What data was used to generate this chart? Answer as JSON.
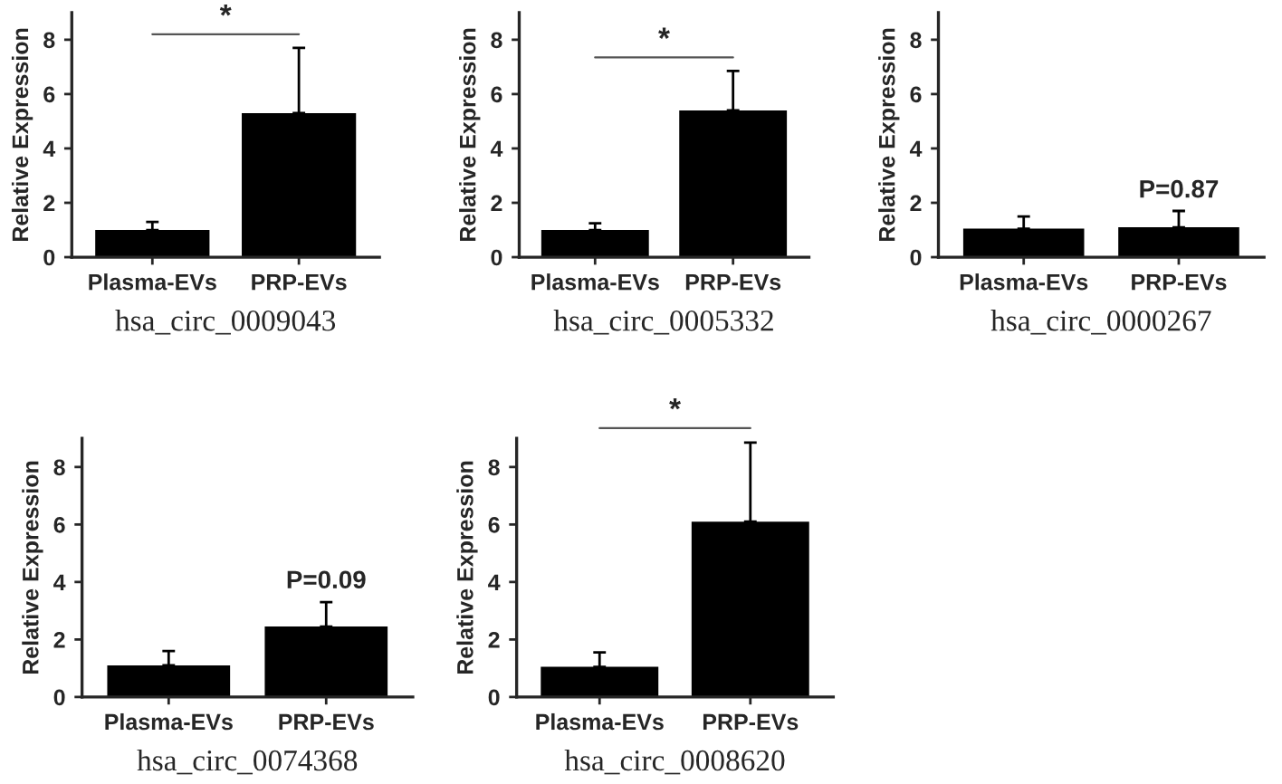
{
  "chart_data": [
    {
      "type": "bar",
      "xlabel": "hsa_circ_0009043",
      "ylabel": "Relative Expression",
      "categories": [
        "Plasma-EVs",
        "PRP-EVs"
      ],
      "values": [
        1.0,
        5.3
      ],
      "errors": [
        [
          1.0,
          1.3
        ],
        [
          5.3,
          7.7
        ]
      ],
      "colors": [
        "#000000",
        "#000000"
      ],
      "ylim": [
        0,
        9
      ],
      "yticks": [
        0,
        2,
        4,
        6,
        8
      ],
      "annotations": [
        "*"
      ]
    },
    {
      "type": "bar",
      "xlabel": "hsa_circ_0005332",
      "ylabel": "Relative Expression",
      "categories": [
        "Plasma-EVs",
        "PRP-EVs"
      ],
      "values": [
        1.0,
        5.4
      ],
      "errors": [
        [
          1.0,
          1.25
        ],
        [
          5.4,
          6.85
        ]
      ],
      "colors": [
        "#000000",
        "#000000"
      ],
      "ylim": [
        0,
        9
      ],
      "yticks": [
        0,
        2,
        4,
        6,
        8
      ],
      "annotations": [
        "*"
      ]
    },
    {
      "type": "bar",
      "xlabel": "hsa_circ_0000267",
      "ylabel": "Relative Expression",
      "categories": [
        "Plasma-EVs",
        "PRP-EVs"
      ],
      "values": [
        1.05,
        1.1
      ],
      "errors": [
        [
          1.05,
          1.5
        ],
        [
          1.1,
          1.7
        ]
      ],
      "colors": [
        "#000000",
        "#000000"
      ],
      "ylim": [
        0,
        9
      ],
      "yticks": [
        0,
        2,
        4,
        6,
        8
      ],
      "annotations": [
        {
          "text": "P=0.87",
          "x": "PRP-EVs",
          "y": 1.7
        }
      ]
    },
    {
      "type": "bar",
      "xlabel": "hsa_circ_0074368",
      "ylabel": "Relative Expression",
      "categories": [
        "Plasma-EVs",
        "PRP-EVs"
      ],
      "values": [
        1.1,
        2.45
      ],
      "errors": [
        [
          1.1,
          1.6
        ],
        [
          2.45,
          3.3
        ]
      ],
      "colors": [
        "#000000",
        "#000000"
      ],
      "ylim": [
        0,
        9
      ],
      "yticks": [
        0,
        2,
        4,
        6,
        8
      ],
      "annotations": [
        {
          "text": "P=0.09",
          "x": "PRP-EVs",
          "y": 3.3
        }
      ]
    },
    {
      "type": "bar",
      "xlabel": "hsa_circ_0008620",
      "ylabel": "Relative Expression",
      "categories": [
        "Plasma-EVs",
        "PRP-EVs"
      ],
      "values": [
        1.05,
        6.1
      ],
      "errors": [
        [
          1.05,
          1.55
        ],
        [
          6.1,
          8.85
        ]
      ],
      "colors": [
        "#000000",
        "#000000"
      ],
      "ylim": [
        0,
        9
      ],
      "yticks": [
        0,
        2,
        4,
        6,
        8
      ],
      "annotations": [
        "*"
      ]
    }
  ]
}
